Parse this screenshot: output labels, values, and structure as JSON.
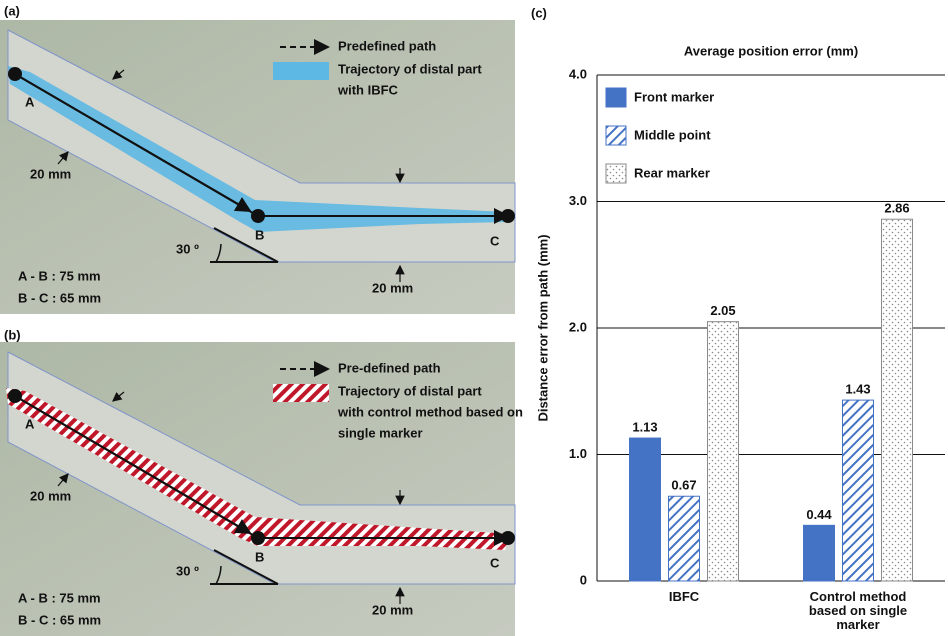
{
  "panels": [
    {
      "label": "(a)",
      "legend": {
        "path": "Predefined path",
        "trajectory": [
          "Trajectory of distal part",
          "with IBFC"
        ]
      },
      "points": [
        "A",
        "B",
        "C"
      ],
      "widths": [
        "20 mm",
        "20 mm"
      ],
      "angle": "30 º",
      "lengths": [
        "A - B : 75 mm",
        "B - C : 65 mm"
      ]
    },
    {
      "label": "(b)",
      "legend": {
        "path": "Pre-defined path",
        "trajectory": [
          "Trajectory of distal part",
          "with control method based on",
          "single marker"
        ]
      },
      "points": [
        "A",
        "B",
        "C"
      ],
      "widths": [
        "20 mm",
        "20 mm"
      ],
      "angle": "30 º",
      "lengths": [
        "A - B : 75 mm",
        "B - C : 65 mm"
      ]
    }
  ],
  "chart_data": {
    "type": "bar",
    "panel_label": "(c)",
    "title": "Average position error (mm)",
    "y_label": "Distance error from path (mm)",
    "categories": [
      "IBFC",
      "Control method based on single marker"
    ],
    "series": [
      {
        "name": "Front marker",
        "color": "#4472c4",
        "fill": "solid",
        "values": [
          1.13,
          0.44
        ]
      },
      {
        "name": "Middle point",
        "color": "#4472c4",
        "fill": "hatch",
        "values": [
          0.67,
          1.43
        ]
      },
      {
        "name": "Rear marker",
        "color": "#8a8a8a",
        "fill": "dots",
        "values": [
          2.05,
          2.86
        ]
      }
    ],
    "ylim": [
      0,
      4
    ],
    "yticks": [
      0,
      {
        "value": 1,
        "label": "1.0"
      },
      {
        "value": 2,
        "label": "2.0"
      },
      {
        "value": 3,
        "label": "3.0"
      },
      {
        "value": 4,
        "label": "4.0"
      }
    ],
    "grid": true,
    "legend": "top-left"
  }
}
